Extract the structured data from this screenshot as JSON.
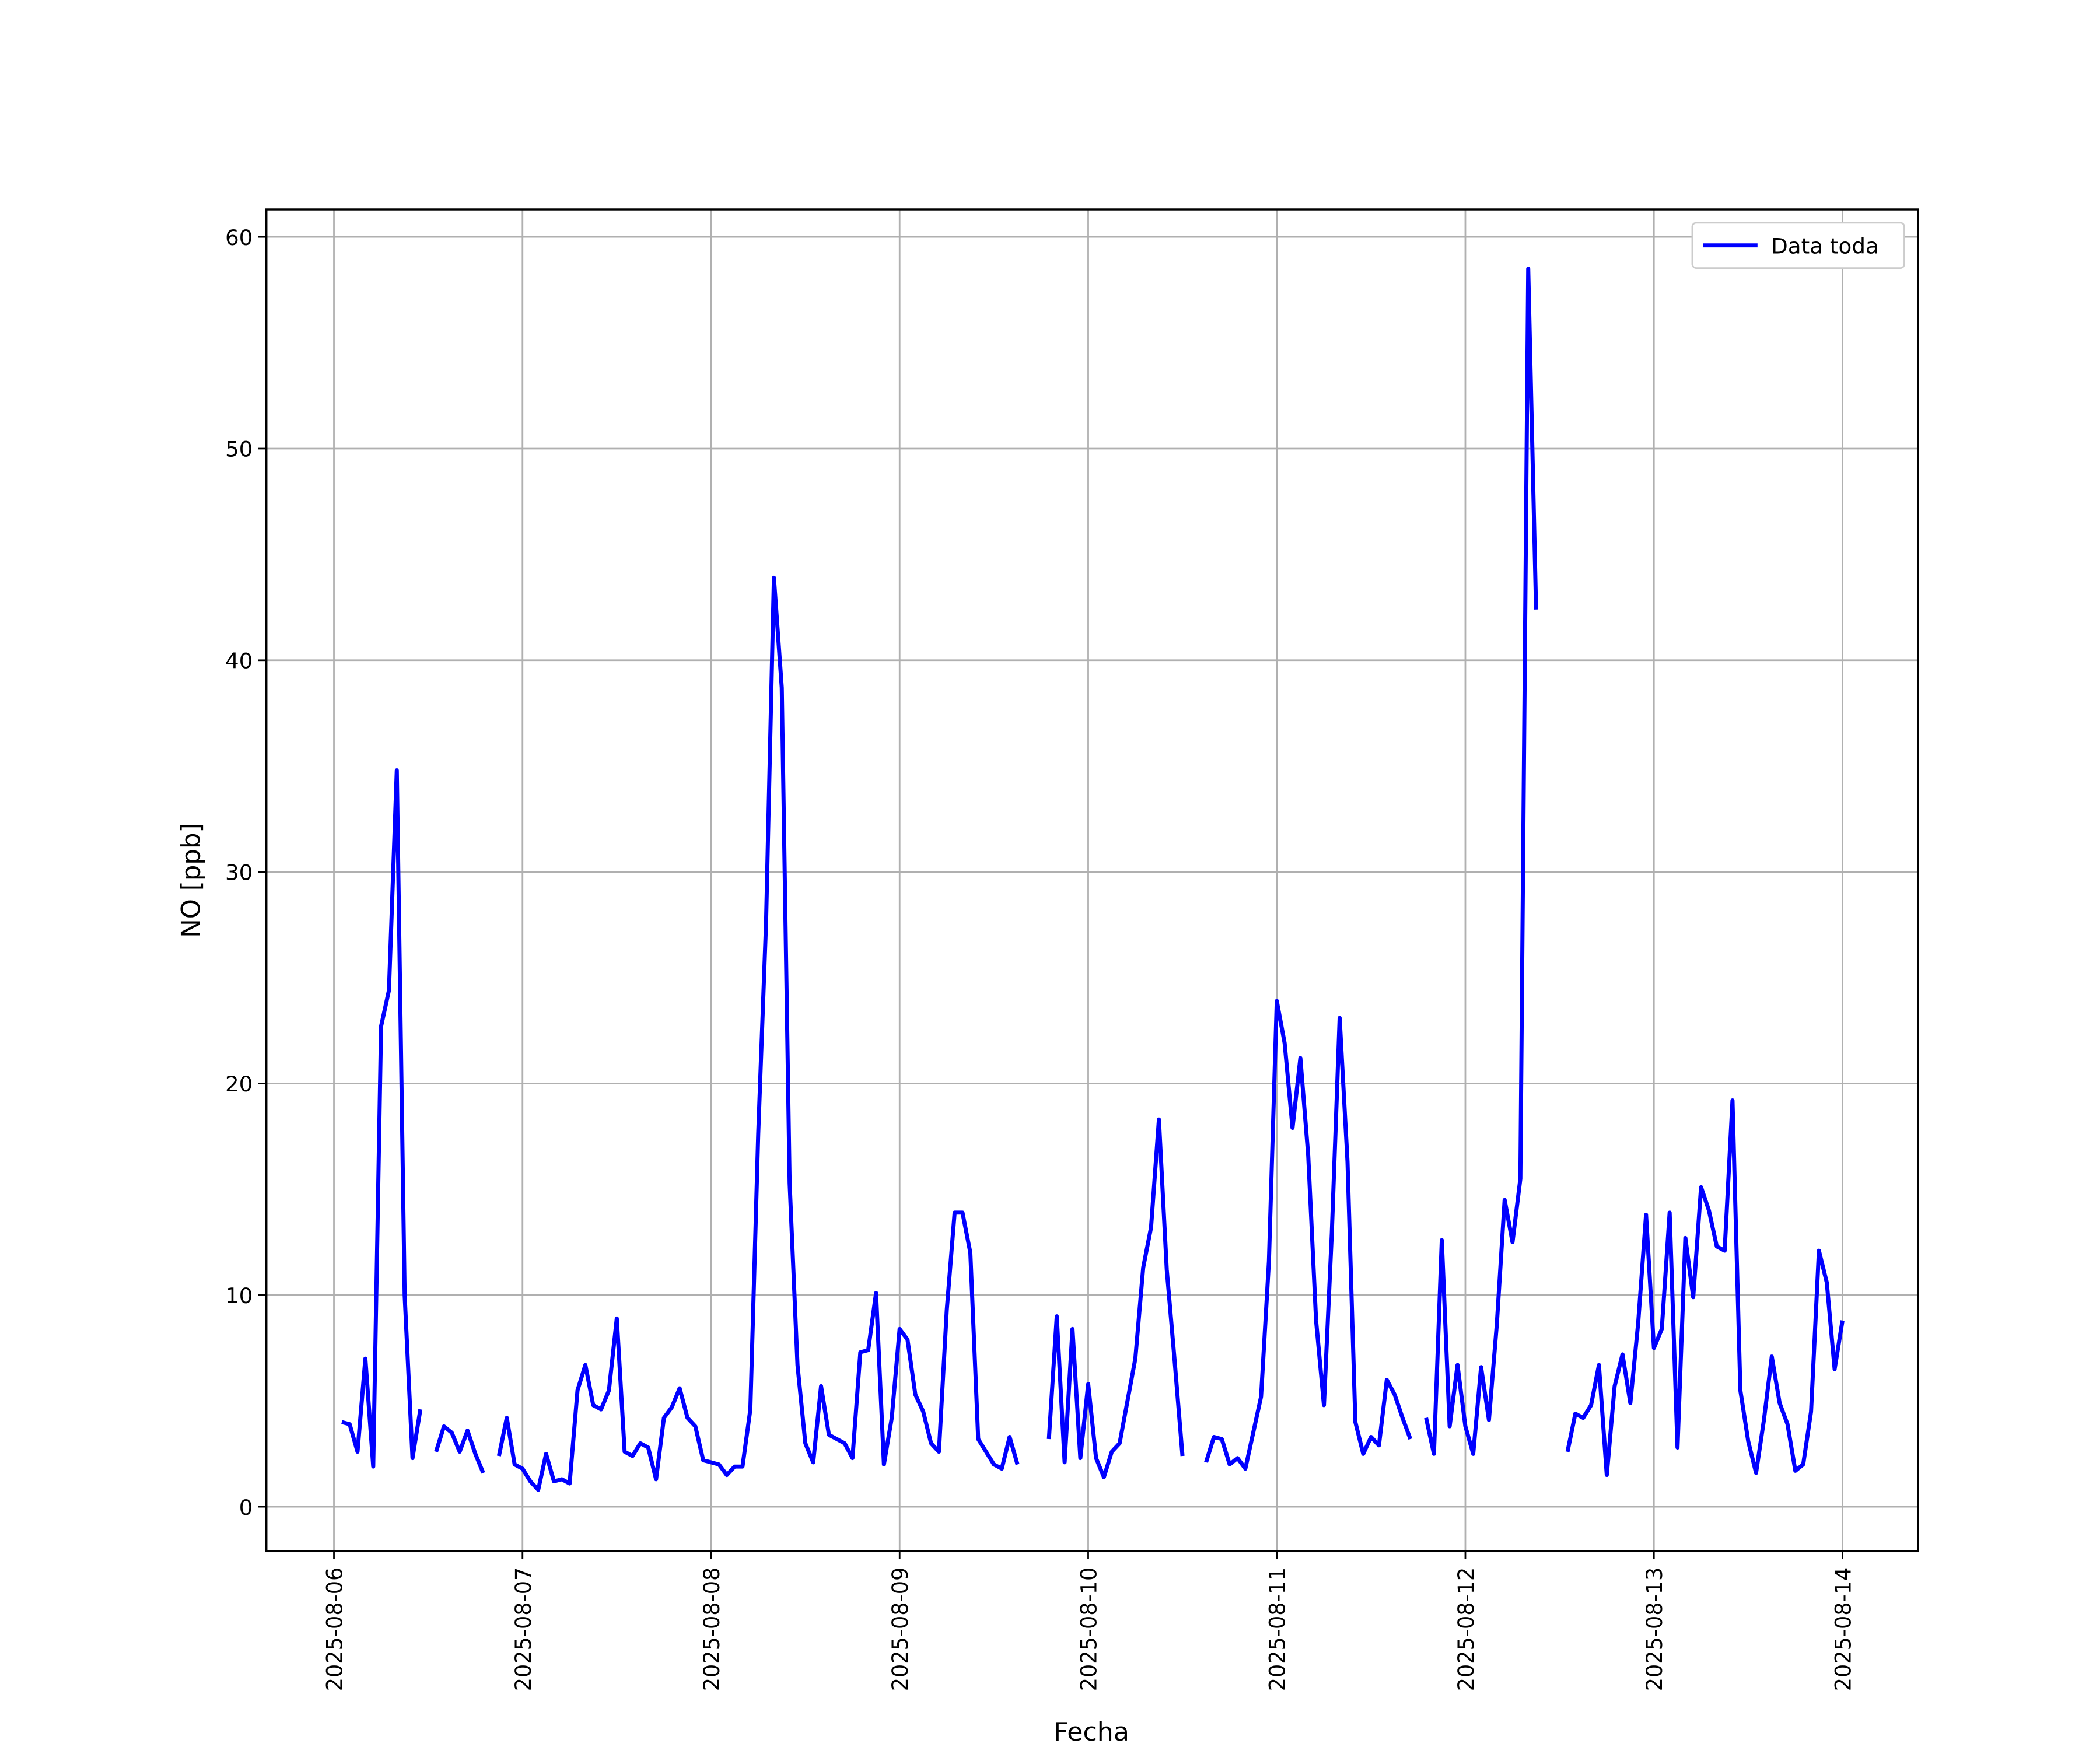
{
  "chart_data": {
    "type": "line",
    "xlabel": "Fecha",
    "ylabel": "NO [ppb]",
    "x": [
      1,
      2,
      3,
      4,
      5,
      6,
      7,
      8,
      9,
      10,
      11,
      12,
      13,
      14,
      15,
      16,
      17,
      18,
      19,
      20,
      21,
      22,
      23,
      24,
      25,
      26,
      27,
      28,
      29,
      30,
      31,
      32,
      33,
      34,
      35,
      36,
      37,
      38,
      39,
      40,
      41,
      42,
      43,
      44,
      45,
      46,
      47,
      48,
      49,
      50,
      51,
      52,
      53,
      54,
      55,
      56,
      57,
      58,
      59,
      60,
      61,
      62,
      63,
      64,
      65,
      66,
      67,
      68,
      69,
      70,
      71,
      72,
      73,
      74,
      75,
      76,
      77,
      78,
      79,
      80,
      81,
      82,
      83,
      84,
      85,
      86,
      87,
      88,
      89,
      90,
      91,
      92,
      93,
      94,
      95,
      96,
      97,
      98,
      99,
      100,
      101,
      102,
      103,
      104,
      105,
      106,
      107,
      108,
      109,
      110,
      111,
      112,
      113,
      114,
      115,
      116,
      117,
      118,
      119,
      120,
      121,
      122,
      123,
      124,
      125,
      126,
      127,
      128,
      129,
      130,
      131,
      132,
      133,
      134,
      135,
      136,
      137,
      138,
      139,
      140,
      141,
      142,
      143,
      144,
      145,
      146,
      147,
      148,
      149,
      150,
      151,
      152,
      153,
      154,
      155,
      156,
      157,
      158,
      159,
      160,
      161,
      162,
      163,
      164,
      165,
      166,
      167,
      168,
      169,
      170,
      171,
      172,
      173,
      174,
      175,
      176,
      177,
      178,
      179,
      180,
      181,
      182,
      183,
      184,
      185,
      186,
      187,
      188,
      189,
      190,
      191,
      192
    ],
    "series": [
      {
        "name": "Data toda",
        "color": "#0000ff",
        "values": [
          4.0,
          3.9,
          2.6,
          7.0,
          1.9,
          22.7,
          24.4,
          34.8,
          10.0,
          2.3,
          4.6,
          null,
          2.6,
          3.8,
          3.5,
          2.6,
          3.6,
          2.5,
          1.6,
          null,
          2.4,
          4.2,
          2.0,
          1.8,
          1.2,
          0.8,
          2.5,
          1.2,
          1.3,
          1.1,
          5.5,
          6.7,
          4.8,
          4.6,
          5.5,
          8.9,
          2.6,
          2.4,
          3.0,
          2.8,
          1.3,
          4.2,
          4.7,
          5.6,
          4.2,
          3.8,
          2.2,
          2.1,
          2.0,
          1.5,
          1.9,
          1.9,
          4.6,
          17.6,
          27.6,
          43.9,
          38.7,
          15.3,
          6.7,
          3.0,
          2.1,
          5.7,
          3.4,
          3.2,
          3.0,
          2.3,
          7.3,
          7.4,
          10.1,
          2.0,
          4.2,
          8.4,
          7.9,
          5.3,
          4.5,
          3.0,
          2.6,
          9.3,
          13.9,
          13.9,
          12.0,
          3.2,
          2.6,
          2.0,
          1.8,
          3.3,
          2.0,
          null,
          null,
          null,
          3.2,
          9.0,
          2.1,
          8.4,
          2.3,
          5.8,
          2.3,
          1.4,
          2.6,
          3.0,
          5.0,
          7.0,
          11.3,
          13.2,
          18.3,
          11.2,
          6.9,
          2.4,
          null,
          null,
          2.1,
          3.3,
          3.2,
          2.0,
          2.3,
          1.8,
          3.5,
          5.2,
          11.6,
          23.9,
          21.9,
          17.9,
          21.2,
          16.6,
          8.8,
          4.8,
          12.9,
          23.1,
          16.3,
          4.0,
          2.5,
          3.3,
          2.9,
          6.0,
          5.3,
          4.2,
          3.2,
          null,
          4.2,
          2.5,
          12.6,
          3.8,
          6.7,
          3.8,
          2.5,
          6.6,
          4.1,
          8.6,
          14.5,
          12.5,
          15.5,
          58.5,
          42.4,
          null,
          null,
          null,
          2.6,
          4.4,
          4.2,
          4.8,
          6.7,
          1.5,
          5.7,
          7.2,
          4.9,
          8.7,
          13.8,
          7.5,
          8.4,
          13.9,
          2.8,
          12.7,
          9.9,
          15.1,
          14.0,
          12.3,
          12.1,
          19.2,
          5.5,
          3.1,
          1.6,
          4.1,
          7.1,
          4.9,
          3.9,
          1.7,
          2.0,
          4.5,
          12.1,
          10.6,
          6.5,
          8.8
        ]
      }
    ],
    "xlim": [
      -8.6,
      201.6
    ],
    "xticks": [
      {
        "value": 0,
        "label": "2025-08-06"
      },
      {
        "value": 24,
        "label": "2025-08-07"
      },
      {
        "value": 48,
        "label": "2025-08-08"
      },
      {
        "value": 72,
        "label": "2025-08-09"
      },
      {
        "value": 96,
        "label": "2025-08-10"
      },
      {
        "value": 120,
        "label": "2025-08-11"
      },
      {
        "value": 144,
        "label": "2025-08-12"
      },
      {
        "value": 168,
        "label": "2025-08-13"
      },
      {
        "value": 192,
        "label": "2025-08-14"
      }
    ],
    "ylim": [
      -2.1,
      61.3
    ],
    "yticks": [
      0,
      10,
      20,
      30,
      40,
      50,
      60
    ],
    "grid": true,
    "legend": "upper right"
  }
}
